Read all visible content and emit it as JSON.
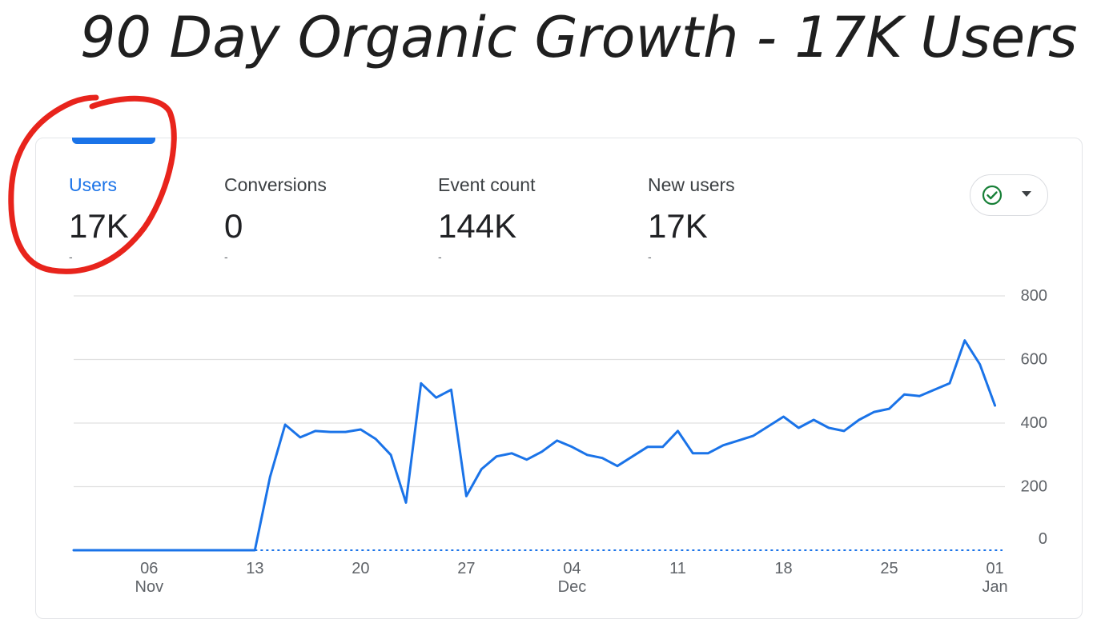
{
  "headline": "90 Day Organic Growth - 17K Users",
  "metrics": [
    {
      "label": "Users",
      "value": "17K",
      "delta": "-",
      "active": true
    },
    {
      "label": "Conversions",
      "value": "0",
      "delta": "-",
      "active": false
    },
    {
      "label": "Event count",
      "value": "144K",
      "delta": "-",
      "active": false
    },
    {
      "label": "New users",
      "value": "17K",
      "delta": "-",
      "active": false
    }
  ],
  "compare_button": {
    "icon": "check-circle-icon",
    "caret_icon": "caret-down-icon"
  },
  "colors": {
    "line": "#1a73e8",
    "accent": "#1a73e8",
    "annotation": "#e8241c",
    "grid": "#e0e0e0"
  },
  "chart_data": {
    "type": "line",
    "ylim": [
      0,
      800
    ],
    "yticks": [
      0,
      200,
      400,
      600,
      800
    ],
    "grid": true,
    "xticks": [
      {
        "label": "06",
        "sub": "Nov",
        "day": 6
      },
      {
        "label": "13",
        "sub": "",
        "day": 13
      },
      {
        "label": "20",
        "sub": "",
        "day": 20
      },
      {
        "label": "27",
        "sub": "",
        "day": 27
      },
      {
        "label": "04",
        "sub": "Dec",
        "day": 34
      },
      {
        "label": "11",
        "sub": "",
        "day": 41
      },
      {
        "label": "18",
        "sub": "",
        "day": 48
      },
      {
        "label": "25",
        "sub": "",
        "day": 55
      },
      {
        "label": "01",
        "sub": "Jan",
        "day": 62
      }
    ],
    "x_start_day": 1,
    "x_end_day": 62.5,
    "series": [
      {
        "values": [
          [
            1,
            0
          ],
          [
            13,
            0
          ],
          [
            14,
            230
          ],
          [
            15,
            395
          ],
          [
            16,
            355
          ],
          [
            17,
            375
          ],
          [
            18,
            372
          ],
          [
            19,
            372
          ],
          [
            20,
            380
          ],
          [
            21,
            350
          ],
          [
            22,
            300
          ],
          [
            23,
            150
          ],
          [
            24,
            525
          ],
          [
            25,
            480
          ],
          [
            26,
            505
          ],
          [
            27,
            170
          ],
          [
            28,
            255
          ],
          [
            29,
            295
          ],
          [
            30,
            305
          ],
          [
            31,
            285
          ],
          [
            32,
            310
          ],
          [
            33,
            345
          ],
          [
            34,
            325
          ],
          [
            35,
            300
          ],
          [
            36,
            290
          ],
          [
            37,
            265
          ],
          [
            38,
            295
          ],
          [
            39,
            325
          ],
          [
            40,
            325
          ],
          [
            41,
            375
          ],
          [
            42,
            305
          ],
          [
            43,
            305
          ],
          [
            44,
            330
          ],
          [
            45,
            345
          ],
          [
            46,
            360
          ],
          [
            47,
            390
          ],
          [
            48,
            420
          ],
          [
            49,
            385
          ],
          [
            50,
            410
          ],
          [
            51,
            385
          ],
          [
            52,
            375
          ],
          [
            53,
            410
          ],
          [
            54,
            435
          ],
          [
            55,
            445
          ],
          [
            56,
            490
          ],
          [
            57,
            485
          ],
          [
            58,
            505
          ],
          [
            59,
            525
          ],
          [
            60,
            660
          ],
          [
            61,
            585
          ],
          [
            62,
            455
          ]
        ]
      },
      {
        "style": "dotted-baseline",
        "values": [
          [
            13,
            0
          ],
          [
            62.5,
            0
          ]
        ]
      }
    ]
  }
}
